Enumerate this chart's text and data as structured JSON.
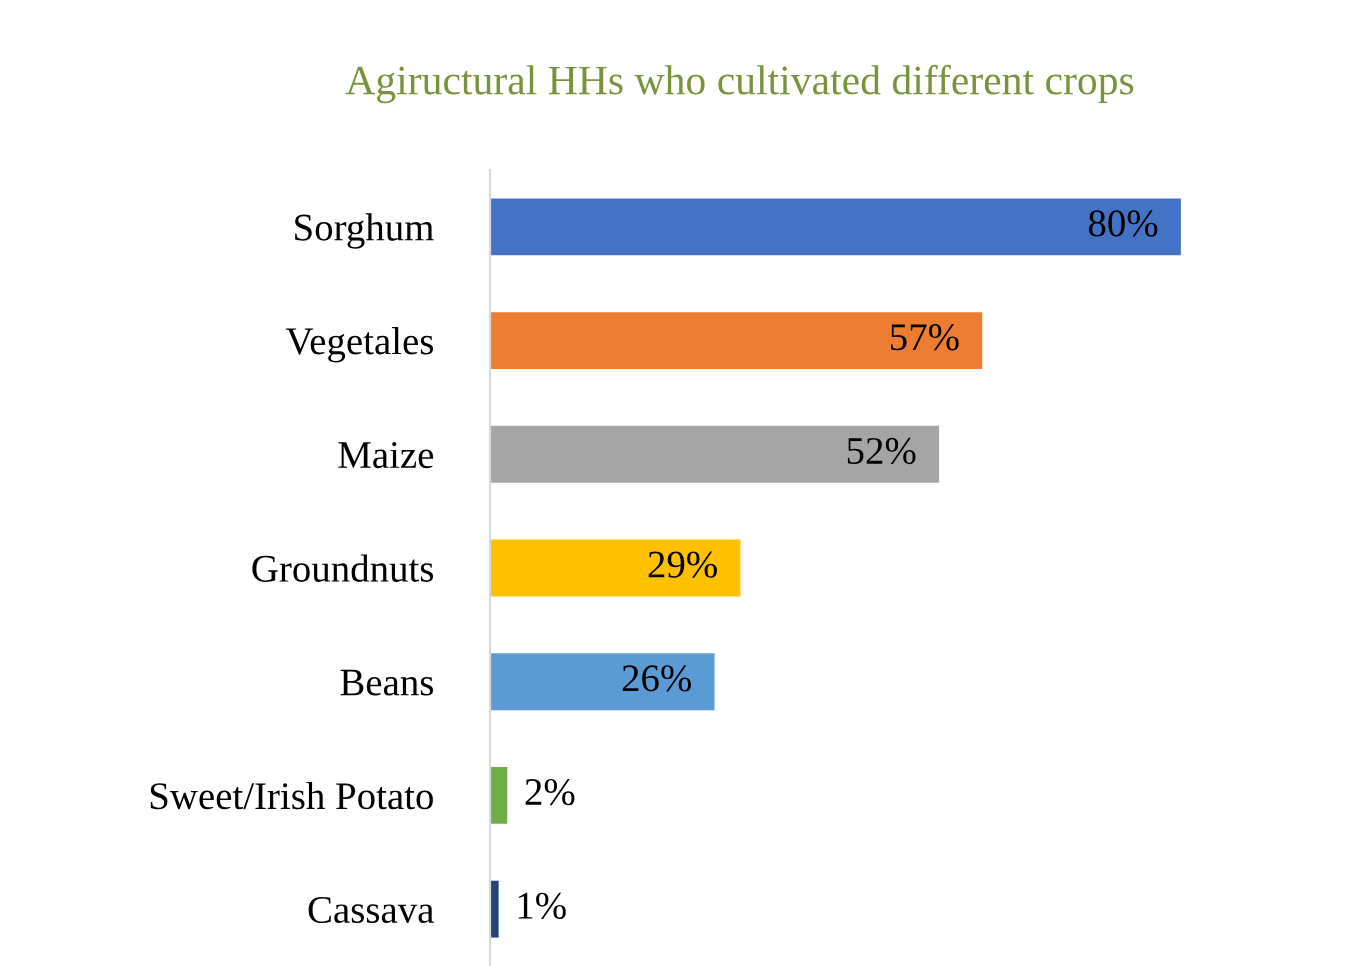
{
  "chart_data": {
    "type": "bar",
    "orientation": "horizontal",
    "title": "Agiructural HHs who cultivated different crops",
    "categories": [
      "Sorghum",
      "Vegetales",
      "Maize",
      "Groundnuts",
      "Beans",
      "Sweet/Irish Potato",
      "Cassava"
    ],
    "values": [
      80,
      57,
      52,
      29,
      26,
      2,
      1
    ],
    "colors": [
      "#4472c4",
      "#ed7d31",
      "#a5a5a5",
      "#ffc000",
      "#5b9bd5",
      "#70ad47",
      "#264478"
    ],
    "value_labels": [
      "80%",
      "57%",
      "52%",
      "29%",
      "26%",
      "2%",
      "1%"
    ],
    "grid": false,
    "legend": false
  }
}
